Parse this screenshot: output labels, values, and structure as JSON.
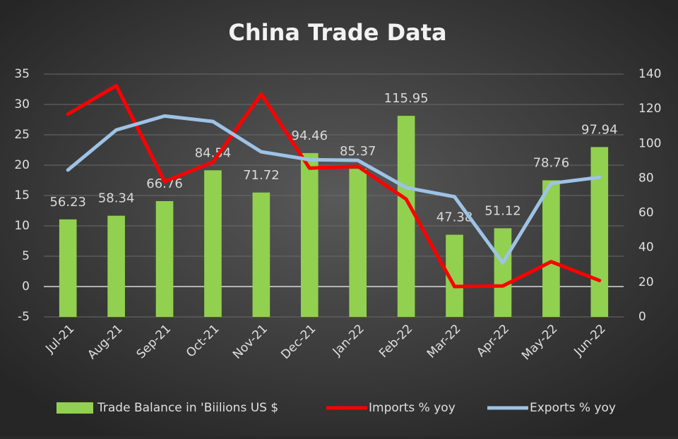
{
  "chart_data": {
    "type": "bar-line",
    "title": "China Trade Data",
    "categories": [
      "Jul-21",
      "Aug-21",
      "Sep-21",
      "Oct-21",
      "Nov-21",
      "Dec-21",
      "Jan-22",
      "Feb-22",
      "Mar-22",
      "Apr-22",
      "May-22",
      "Jun-22"
    ],
    "series": [
      {
        "name": "Trade Balance in 'Biilions US $",
        "type": "bar",
        "axis": "y2",
        "color": "#92d050",
        "values": [
          56.23,
          58.34,
          66.76,
          84.54,
          71.72,
          94.46,
          85.37,
          115.95,
          47.38,
          51.12,
          78.76,
          97.94
        ]
      },
      {
        "name": "Imports % yoy",
        "type": "line",
        "color": "#ff0000",
        "values": [
          28.4,
          33.1,
          17.3,
          20.5,
          31.7,
          19.5,
          19.8,
          14.4,
          0.0,
          0.1,
          4.1,
          1.0
        ]
      },
      {
        "name": "Exports % yoy",
        "type": "line",
        "color": "#9dc3e6",
        "values": [
          19.2,
          25.8,
          28.1,
          27.2,
          22.2,
          20.9,
          20.8,
          16.3,
          14.8,
          3.9,
          17.0,
          18.0
        ]
      }
    ],
    "ylim": [
      -5,
      35
    ],
    "yticks": [
      -5,
      0,
      5,
      10,
      15,
      20,
      25,
      30,
      35
    ],
    "y2lim": [
      0,
      140
    ],
    "y2ticks": [
      0,
      20,
      40,
      60,
      80,
      100,
      120,
      140
    ],
    "grid": true,
    "legend": "bottom"
  }
}
